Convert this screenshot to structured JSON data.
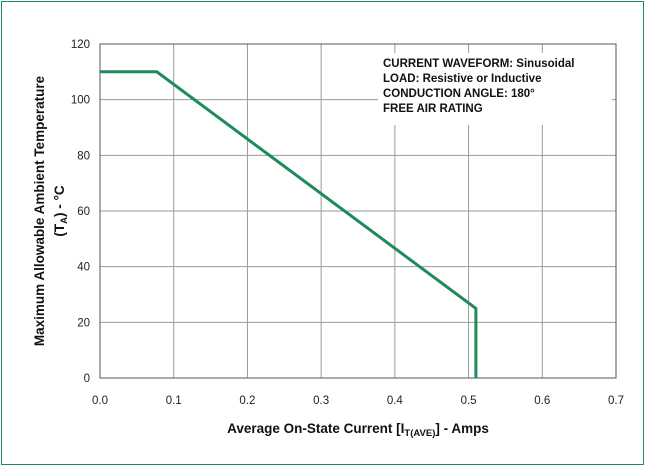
{
  "colors": {
    "border": "#1e8c5a",
    "line": "#1e8c5a",
    "grid": "#9a9a9a"
  },
  "chart_data": {
    "type": "line",
    "xlabel": "Average On-State Current [I_T(AVE)] - Amps",
    "xlabel_parts": {
      "main": "Average On-State Current [I",
      "sub": "T(AVE)",
      "tail": "] - Amps"
    },
    "ylabel_line1": "Maximum Allowable Ambient Temperature",
    "ylabel_line2_parts": {
      "open": "(T",
      "sub": "A",
      "tail": ") - °C"
    },
    "xlim": [
      0,
      0.7
    ],
    "ylim": [
      0,
      120
    ],
    "x_ticks": [
      "0.0",
      "0.1",
      "0.2",
      "0.3",
      "0.4",
      "0.5",
      "0.6",
      "0.7"
    ],
    "y_ticks": [
      "0",
      "20",
      "40",
      "60",
      "80",
      "100",
      "120"
    ],
    "grid": true,
    "series": [
      {
        "points": [
          {
            "x": 0.0,
            "y": 110
          },
          {
            "x": 0.077,
            "y": 110
          },
          {
            "x": 0.51,
            "y": 25
          },
          {
            "x": 0.51,
            "y": 0
          }
        ]
      }
    ],
    "annotations": [
      "CURRENT WAVEFORM: Sinusoidal",
      "LOAD: Resistive or Inductive",
      "CONDUCTION ANGLE: 180°",
      "FREE AIR RATING"
    ]
  }
}
